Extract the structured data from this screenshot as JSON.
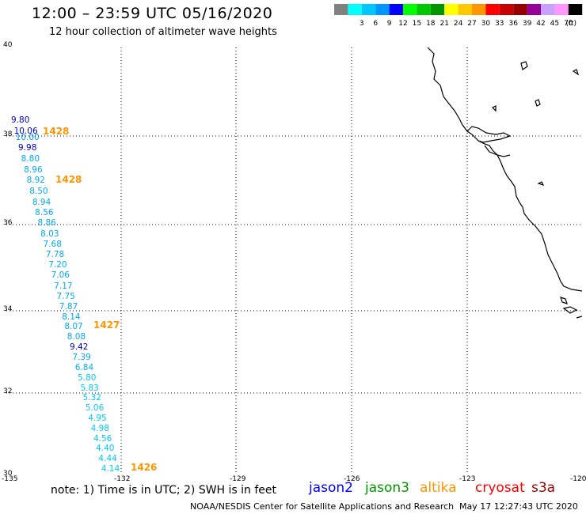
{
  "header": {
    "title": "12:00 – 23:59 UTC 05/16/2020",
    "subtitle": "12 hour collection of altimeter wave heights"
  },
  "legend": {
    "unit": "(ft)",
    "entries": [
      {
        "label": "",
        "color": "#808080"
      },
      {
        "label": "3",
        "color": "#00ffff"
      },
      {
        "label": "6",
        "color": "#00c8ff"
      },
      {
        "label": "9",
        "color": "#0096ff"
      },
      {
        "label": "12",
        "color": "#0000ff"
      },
      {
        "label": "15",
        "color": "#00ff00"
      },
      {
        "label": "18",
        "color": "#00c800"
      },
      {
        "label": "21",
        "color": "#009600"
      },
      {
        "label": "24",
        "color": "#ffff00"
      },
      {
        "label": "27",
        "color": "#ffc800"
      },
      {
        "label": "30",
        "color": "#ff9600"
      },
      {
        "label": "33",
        "color": "#ff0000"
      },
      {
        "label": "36",
        "color": "#c80000"
      },
      {
        "label": "39",
        "color": "#960000"
      },
      {
        "label": "42",
        "color": "#960096"
      },
      {
        "label": "45",
        "color": "#c8a0ff"
      },
      {
        "label": "70",
        "color": "#ff96ff"
      },
      {
        "label": "",
        "color": "#000000"
      }
    ]
  },
  "axes": {
    "lat_labels": [
      "40",
      "38",
      "36",
      "34",
      "32",
      "30"
    ],
    "lon_labels": [
      "-135",
      "-132",
      "-129",
      "-126",
      "-123",
      "-120"
    ]
  },
  "readings": [
    {
      "value": "9.80",
      "color": "#0000c8"
    },
    {
      "value": "10.06",
      "color": "#0000c8"
    },
    {
      "value": "10.00",
      "color": "#0096ff"
    },
    {
      "value": "9.98",
      "color": "#0000c8"
    },
    {
      "value": "8.80",
      "color": "#00aaff"
    },
    {
      "value": "8.96",
      "color": "#00aaff"
    },
    {
      "value": "8.92",
      "color": "#00aaff"
    },
    {
      "value": "8.50",
      "color": "#00aaff"
    },
    {
      "value": "8.94",
      "color": "#00aaff"
    },
    {
      "value": "8.56",
      "color": "#00aaff"
    },
    {
      "value": "8.86",
      "color": "#00aaff"
    },
    {
      "value": "8.03",
      "color": "#00aaff"
    },
    {
      "value": "7.68",
      "color": "#00aaff"
    },
    {
      "value": "7.78",
      "color": "#00aaff"
    },
    {
      "value": "7.20",
      "color": "#00aaff"
    },
    {
      "value": "7.06",
      "color": "#00aaff"
    },
    {
      "value": "7.17",
      "color": "#00aaff"
    },
    {
      "value": "7.75",
      "color": "#00aaff"
    },
    {
      "value": "7.87",
      "color": "#00aaff"
    },
    {
      "value": "8.14",
      "color": "#00aaff"
    },
    {
      "value": "8.07",
      "color": "#00aaff"
    },
    {
      "value": "8.08",
      "color": "#00aaff"
    },
    {
      "value": "9.42",
      "color": "#0000c8"
    },
    {
      "value": "7.39",
      "color": "#00aaff"
    },
    {
      "value": "6.84",
      "color": "#00aaff"
    },
    {
      "value": "5.80",
      "color": "#00c8ff"
    },
    {
      "value": "5.83",
      "color": "#00c8ff"
    },
    {
      "value": "5.32",
      "color": "#00c8ff"
    },
    {
      "value": "5.06",
      "color": "#00c8ff"
    },
    {
      "value": "4.95",
      "color": "#00c8ff"
    },
    {
      "value": "4.98",
      "color": "#00c8ff"
    },
    {
      "value": "4.56",
      "color": "#00c8ff"
    },
    {
      "value": "4.40",
      "color": "#00c8ff"
    },
    {
      "value": "4.44",
      "color": "#00c8ff"
    },
    {
      "value": "4.14",
      "color": "#00c8ff"
    }
  ],
  "time_labels": [
    {
      "value": "1428",
      "color": "#ff9600"
    },
    {
      "value": "1428",
      "color": "#ff9600"
    },
    {
      "value": "1427",
      "color": "#ff9600"
    },
    {
      "value": "1426",
      "color": "#ff9600"
    }
  ],
  "footer": {
    "note": "note:  1) Time is in UTC;  2) SWH is in feet",
    "satellites": [
      {
        "label": "jason2",
        "color": "#0000ff"
      },
      {
        "label": "jason3",
        "color": "#009600"
      },
      {
        "label": "altika",
        "color": "#ff9600"
      },
      {
        "label": "cryosat",
        "color": "#ff0000"
      },
      {
        "label": "s3a",
        "color": "#960000"
      }
    ],
    "credit": "NOAA/NESDIS Center for Satellite Applications and Research",
    "timestamp": "May 17 12:27:43 UTC 2020"
  }
}
